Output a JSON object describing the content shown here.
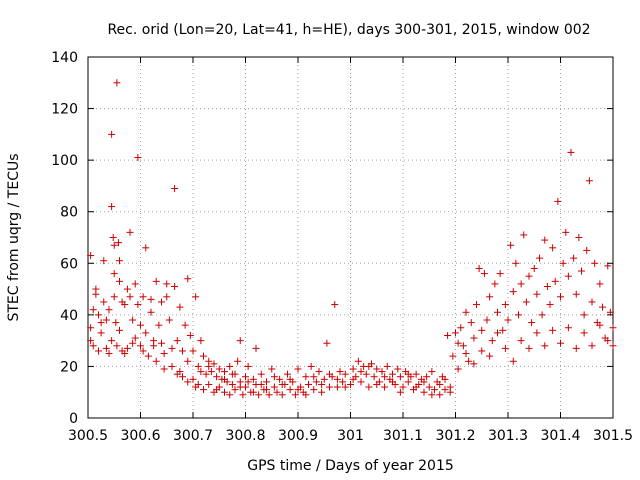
{
  "chart_data": {
    "type": "scatter",
    "title": "Rec. orid (Lon=20, Lat=41, h=HE), days 300-301, 2015, window 002",
    "xlabel": "GPS time / Days of year 2015",
    "ylabel": "STEC from uqrg / TECUs",
    "xlim": [
      300.5,
      301.5
    ],
    "ylim": [
      0,
      140
    ],
    "x_ticks": [
      "300.5",
      "300.6",
      "300.7",
      "300.8",
      "300.9",
      "301",
      "301.1",
      "301.2",
      "301.3",
      "301.4",
      "301.5"
    ],
    "y_ticks": [
      "0",
      "20",
      "40",
      "60",
      "80",
      "100",
      "120",
      "140"
    ],
    "grid": true,
    "marker": "plus",
    "color": "#cc0000",
    "series": [
      {
        "points": [
          [
            300.505,
            63
          ],
          [
            300.505,
            35
          ],
          [
            300.505,
            30
          ],
          [
            300.51,
            28
          ],
          [
            300.515,
            50
          ],
          [
            300.515,
            48
          ],
          [
            300.52,
            40
          ],
          [
            300.52,
            26
          ],
          [
            300.525,
            33
          ],
          [
            300.53,
            61
          ],
          [
            300.53,
            45
          ],
          [
            300.535,
            38
          ],
          [
            300.535,
            27
          ],
          [
            300.54,
            42
          ],
          [
            300.54,
            25
          ],
          [
            300.545,
            110
          ],
          [
            300.545,
            82
          ],
          [
            300.548,
            70
          ],
          [
            300.55,
            67
          ],
          [
            300.55,
            56
          ],
          [
            300.55,
            47
          ],
          [
            300.553,
            37
          ],
          [
            300.555,
            130
          ],
          [
            300.555,
            28
          ],
          [
            300.558,
            68
          ],
          [
            300.56,
            61
          ],
          [
            300.56,
            53
          ],
          [
            300.565,
            45
          ],
          [
            300.565,
            26
          ],
          [
            300.57,
            44
          ],
          [
            300.57,
            25
          ],
          [
            300.575,
            50
          ],
          [
            300.58,
            47
          ],
          [
            300.58,
            72
          ],
          [
            300.585,
            38
          ],
          [
            300.585,
            29
          ],
          [
            300.59,
            52
          ],
          [
            300.595,
            101
          ],
          [
            300.595,
            44
          ],
          [
            300.6,
            36
          ],
          [
            300.6,
            28
          ],
          [
            300.605,
            47
          ],
          [
            300.61,
            66
          ],
          [
            300.61,
            33
          ],
          [
            300.615,
            24
          ],
          [
            300.62,
            46
          ],
          [
            300.62,
            41
          ],
          [
            300.625,
            30
          ],
          [
            300.63,
            53
          ],
          [
            300.63,
            22
          ],
          [
            300.635,
            36
          ],
          [
            300.64,
            45
          ],
          [
            300.64,
            29
          ],
          [
            300.645,
            25
          ],
          [
            300.65,
            52
          ],
          [
            300.65,
            47
          ],
          [
            300.655,
            38
          ],
          [
            300.66,
            20
          ],
          [
            300.665,
            89
          ],
          [
            300.665,
            51
          ],
          [
            300.67,
            30
          ],
          [
            300.67,
            17
          ],
          [
            300.675,
            43
          ],
          [
            300.68,
            26
          ],
          [
            300.68,
            16
          ],
          [
            300.685,
            36
          ],
          [
            300.69,
            54
          ],
          [
            300.69,
            22
          ],
          [
            300.695,
            32
          ],
          [
            300.7,
            26
          ],
          [
            300.7,
            15
          ],
          [
            300.705,
            47
          ],
          [
            300.71,
            20
          ],
          [
            300.71,
            13
          ],
          [
            300.715,
            30
          ],
          [
            300.72,
            24
          ],
          [
            300.72,
            11
          ],
          [
            300.725,
            17
          ],
          [
            300.73,
            22
          ],
          [
            300.73,
            13
          ],
          [
            300.735,
            18
          ],
          [
            300.74,
            21
          ],
          [
            300.74,
            10
          ],
          [
            300.745,
            16
          ],
          [
            300.75,
            19
          ],
          [
            300.75,
            12
          ],
          [
            300.755,
            15
          ],
          [
            300.76,
            18
          ],
          [
            300.76,
            10
          ],
          [
            300.765,
            14
          ],
          [
            300.77,
            20
          ],
          [
            300.77,
            9
          ],
          [
            300.775,
            13
          ],
          [
            300.78,
            17
          ],
          [
            300.78,
            11
          ],
          [
            300.785,
            22
          ],
          [
            300.79,
            30
          ],
          [
            300.79,
            14
          ],
          [
            300.795,
            9
          ],
          [
            300.8,
            16
          ],
          [
            300.8,
            12
          ],
          [
            300.805,
            20
          ],
          [
            300.81,
            10
          ],
          [
            300.815,
            15
          ],
          [
            300.82,
            27
          ],
          [
            300.82,
            13
          ],
          [
            300.825,
            9
          ],
          [
            300.83,
            17
          ],
          [
            300.835,
            11
          ],
          [
            300.84,
            14
          ],
          [
            300.845,
            9
          ],
          [
            300.85,
            19
          ],
          [
            300.855,
            12
          ],
          [
            300.86,
            10
          ],
          [
            300.865,
            15
          ],
          [
            300.87,
            9
          ],
          [
            300.875,
            13
          ],
          [
            300.88,
            17
          ],
          [
            300.885,
            11
          ],
          [
            300.89,
            14
          ],
          [
            300.895,
            9
          ],
          [
            300.9,
            19
          ],
          [
            300.905,
            12
          ],
          [
            300.91,
            10
          ],
          [
            300.915,
            16
          ],
          [
            300.92,
            13
          ],
          [
            300.925,
            20
          ],
          [
            300.93,
            11
          ],
          [
            300.935,
            14
          ],
          [
            300.94,
            18
          ],
          [
            300.945,
            10
          ],
          [
            300.95,
            15
          ],
          [
            300.955,
            29
          ],
          [
            300.96,
            12
          ],
          [
            300.965,
            16
          ],
          [
            300.97,
            44
          ],
          [
            300.975,
            12
          ],
          [
            300.98,
            18
          ],
          [
            300.985,
            14
          ],
          [
            300.99,
            17
          ],
          [
            301.0,
            13
          ],
          [
            301.005,
            19
          ],
          [
            301.01,
            16
          ],
          [
            301.015,
            22
          ],
          [
            301.02,
            14
          ],
          [
            301.025,
            20
          ],
          [
            301.03,
            17
          ],
          [
            301.035,
            12
          ],
          [
            301.04,
            21
          ],
          [
            301.045,
            16
          ],
          [
            301.05,
            19
          ],
          [
            301.055,
            14
          ],
          [
            301.06,
            18
          ],
          [
            301.065,
            12
          ],
          [
            301.07,
            20
          ],
          [
            301.075,
            15
          ],
          [
            301.08,
            17
          ],
          [
            301.085,
            13
          ],
          [
            301.09,
            19
          ],
          [
            301.095,
            16
          ],
          [
            301.1,
            12
          ],
          [
            301.105,
            18
          ],
          [
            301.11,
            14
          ],
          [
            301.115,
            16
          ],
          [
            301.12,
            11
          ],
          [
            301.125,
            17
          ],
          [
            301.13,
            13
          ],
          [
            301.135,
            15
          ],
          [
            301.14,
            10
          ],
          [
            301.145,
            16
          ],
          [
            301.15,
            12
          ],
          [
            301.155,
            18
          ],
          [
            301.16,
            11
          ],
          [
            301.165,
            14
          ],
          [
            301.17,
            9
          ],
          [
            301.175,
            16
          ],
          [
            301.18,
            11
          ],
          [
            301.185,
            32
          ],
          [
            301.19,
            12
          ],
          [
            301.195,
            24
          ],
          [
            301.2,
            33
          ],
          [
            301.205,
            19
          ],
          [
            301.21,
            35
          ],
          [
            301.215,
            28
          ],
          [
            301.22,
            41
          ],
          [
            301.225,
            22
          ],
          [
            301.23,
            37
          ],
          [
            301.235,
            31
          ],
          [
            301.24,
            44
          ],
          [
            301.245,
            58
          ],
          [
            301.25,
            26
          ],
          [
            301.255,
            56
          ],
          [
            301.26,
            38
          ],
          [
            301.265,
            47
          ],
          [
            301.27,
            30
          ],
          [
            301.275,
            52
          ],
          [
            301.28,
            41
          ],
          [
            301.285,
            56
          ],
          [
            301.29,
            34
          ],
          [
            301.295,
            44
          ],
          [
            301.3,
            38
          ],
          [
            301.305,
            67
          ],
          [
            301.31,
            49
          ],
          [
            301.315,
            60
          ],
          [
            301.32,
            40
          ],
          [
            301.325,
            52
          ],
          [
            301.33,
            71
          ],
          [
            301.335,
            45
          ],
          [
            301.34,
            55
          ],
          [
            301.345,
            37
          ],
          [
            301.35,
            58
          ],
          [
            301.355,
            48
          ],
          [
            301.36,
            62
          ],
          [
            301.365,
            40
          ],
          [
            301.37,
            69
          ],
          [
            301.375,
            51
          ],
          [
            301.38,
            44
          ],
          [
            301.385,
            66
          ],
          [
            301.39,
            53
          ],
          [
            301.395,
            84
          ],
          [
            301.4,
            47
          ],
          [
            301.405,
            60
          ],
          [
            301.41,
            72
          ],
          [
            301.415,
            55
          ],
          [
            301.42,
            103
          ],
          [
            301.425,
            62
          ],
          [
            301.43,
            48
          ],
          [
            301.435,
            70
          ],
          [
            301.44,
            57
          ],
          [
            301.445,
            40
          ],
          [
            301.45,
            65
          ],
          [
            301.455,
            92
          ],
          [
            301.46,
            45
          ],
          [
            301.465,
            60
          ],
          [
            301.47,
            37
          ],
          [
            301.475,
            52
          ],
          [
            301.48,
            43
          ],
          [
            301.485,
            31
          ],
          [
            301.49,
            59
          ],
          [
            301.495,
            41
          ],
          [
            301.5,
            35
          ],
          [
            300.51,
            42
          ],
          [
            300.525,
            37
          ],
          [
            300.545,
            30
          ],
          [
            300.56,
            34
          ],
          [
            300.575,
            27
          ],
          [
            300.59,
            31
          ],
          [
            300.605,
            26
          ],
          [
            300.625,
            28
          ],
          [
            300.645,
            19
          ],
          [
            300.66,
            27
          ],
          [
            300.675,
            18
          ],
          [
            300.69,
            14
          ],
          [
            300.705,
            12
          ],
          [
            300.715,
            18
          ],
          [
            300.73,
            20
          ],
          [
            300.745,
            11
          ],
          [
            300.76,
            15
          ],
          [
            300.775,
            17
          ],
          [
            300.79,
            12
          ],
          [
            300.805,
            14
          ],
          [
            300.815,
            10
          ],
          [
            300.83,
            13
          ],
          [
            300.84,
            11
          ],
          [
            300.855,
            16
          ],
          [
            300.87,
            13
          ],
          [
            300.885,
            15
          ],
          [
            300.9,
            11
          ],
          [
            300.915,
            9
          ],
          [
            300.93,
            16
          ],
          [
            300.945,
            13
          ],
          [
            300.96,
            17
          ],
          [
            300.975,
            15
          ],
          [
            300.99,
            12
          ],
          [
            301.005,
            15
          ],
          [
            301.02,
            18
          ],
          [
            301.035,
            20
          ],
          [
            301.05,
            13
          ],
          [
            301.065,
            16
          ],
          [
            301.08,
            14
          ],
          [
            301.095,
            10
          ],
          [
            301.11,
            17
          ],
          [
            301.125,
            12
          ],
          [
            301.14,
            14
          ],
          [
            301.155,
            9
          ],
          [
            301.17,
            13
          ],
          [
            301.18,
            15
          ],
          [
            301.19,
            10
          ],
          [
            301.205,
            29
          ],
          [
            301.22,
            25
          ],
          [
            301.235,
            21
          ],
          [
            301.25,
            34
          ],
          [
            301.265,
            24
          ],
          [
            301.28,
            33
          ],
          [
            301.295,
            27
          ],
          [
            301.31,
            22
          ],
          [
            301.325,
            30
          ],
          [
            301.34,
            27
          ],
          [
            301.355,
            33
          ],
          [
            301.37,
            28
          ],
          [
            301.385,
            34
          ],
          [
            301.4,
            29
          ],
          [
            301.415,
            35
          ],
          [
            301.43,
            27
          ],
          [
            301.445,
            33
          ],
          [
            301.46,
            28
          ],
          [
            301.475,
            36
          ],
          [
            301.49,
            30
          ],
          [
            301.5,
            28
          ]
        ]
      }
    ]
  }
}
